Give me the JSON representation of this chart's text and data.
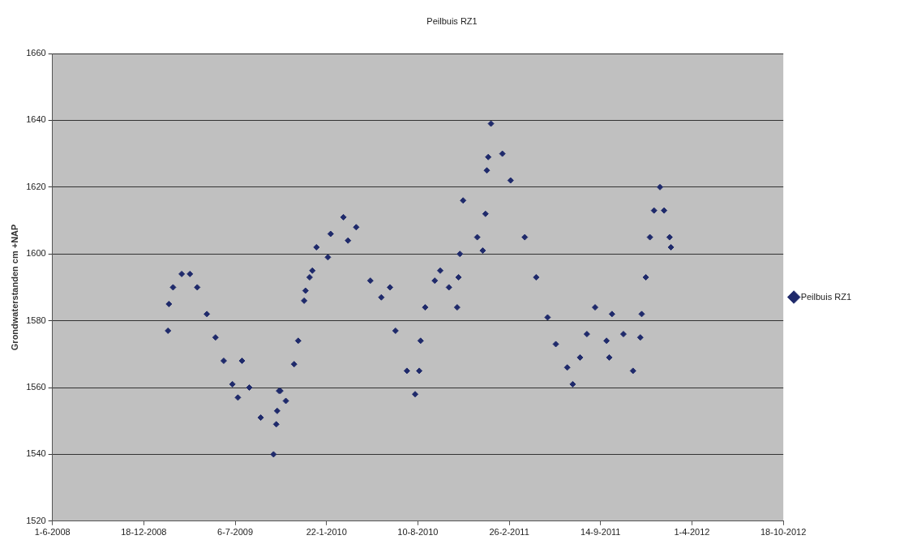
{
  "chart_data": {
    "type": "scatter",
    "title": "Peilbuis RZ1",
    "ylabel": "Grondwaterstanden cm +NAP",
    "x": [
      "2009-02-09",
      "2009-02-11",
      "2009-02-20",
      "2009-03-11",
      "2009-03-29",
      "2009-04-14",
      "2009-05-05",
      "2009-05-24",
      "2009-06-11",
      "2009-06-30",
      "2009-07-12",
      "2009-07-21",
      "2009-08-06",
      "2009-08-31",
      "2009-09-28",
      "2009-10-04",
      "2009-10-06",
      "2009-10-10",
      "2009-10-13",
      "2009-10-25",
      "2009-11-12",
      "2009-11-21",
      "2009-12-04",
      "2009-12-07",
      "2009-12-16",
      "2009-12-22",
      "2009-12-31",
      "2010-01-25",
      "2010-01-31",
      "2010-02-28",
      "2010-03-10",
      "2010-03-28",
      "2010-04-28",
      "2010-05-22",
      "2010-06-10",
      "2010-06-22",
      "2010-07-17",
      "2010-08-04",
      "2010-08-13",
      "2010-08-16",
      "2010-08-26",
      "2010-09-16",
      "2010-09-28",
      "2010-10-17",
      "2010-11-04",
      "2010-11-07",
      "2010-11-10",
      "2010-11-17",
      "2010-12-18",
      "2010-12-30",
      "2011-01-05",
      "2011-01-08",
      "2011-01-11",
      "2011-01-17",
      "2011-02-11",
      "2011-03-01",
      "2011-04-01",
      "2011-04-26",
      "2011-05-21",
      "2011-06-08",
      "2011-07-03",
      "2011-07-15",
      "2011-07-31",
      "2011-08-15",
      "2011-09-02",
      "2011-09-27",
      "2011-10-03",
      "2011-10-09",
      "2011-11-03",
      "2011-11-24",
      "2011-12-10",
      "2011-12-13",
      "2011-12-22",
      "2011-12-31",
      "2012-01-09",
      "2012-01-22",
      "2012-01-31",
      "2012-02-12",
      "2012-02-15"
    ],
    "series": [
      {
        "name": "Peilbuis RZ1",
        "color": "#1f2a6b",
        "values": [
          1577,
          1585,
          1590,
          1594,
          1594,
          1590,
          1582,
          1575,
          1568,
          1561,
          1557,
          1568,
          1560,
          1551,
          1540,
          1549,
          1553,
          1559,
          1559,
          1556,
          1567,
          1574,
          1586,
          1589,
          1593,
          1595,
          1602,
          1599,
          1606,
          1611,
          1604,
          1608,
          1592,
          1587,
          1590,
          1577,
          1565,
          1558,
          1565,
          1574,
          1584,
          1592,
          1595,
          1590,
          1584,
          1593,
          1600,
          1616,
          1605,
          1601,
          1612,
          1625,
          1629,
          1639,
          1630,
          1622,
          1605,
          1593,
          1581,
          1573,
          1566,
          1561,
          1569,
          1576,
          1584,
          1574,
          1569,
          1582,
          1576,
          1565,
          1575,
          1582,
          1593,
          1605,
          1613,
          1620,
          1613,
          1605,
          1602
        ]
      }
    ],
    "xlim": [
      "2008-06-01",
      "2012-10-18"
    ],
    "xticks": [
      {
        "value": "2008-06-01",
        "label": "1-6-2008"
      },
      {
        "value": "2008-12-18",
        "label": "18-12-2008"
      },
      {
        "value": "2009-07-06",
        "label": "6-7-2009"
      },
      {
        "value": "2010-01-22",
        "label": "22-1-2010"
      },
      {
        "value": "2010-08-10",
        "label": "10-8-2010"
      },
      {
        "value": "2011-02-26",
        "label": "26-2-2011"
      },
      {
        "value": "2011-09-14",
        "label": "14-9-2011"
      },
      {
        "value": "2012-04-01",
        "label": "1-4-2012"
      },
      {
        "value": "2012-10-18",
        "label": "18-10-2012"
      }
    ],
    "ylim": [
      1520,
      1660
    ],
    "yticks": [
      1520,
      1540,
      1560,
      1580,
      1600,
      1620,
      1640,
      1660
    ],
    "grid": "y",
    "legend": "right",
    "marker": "diamond"
  }
}
